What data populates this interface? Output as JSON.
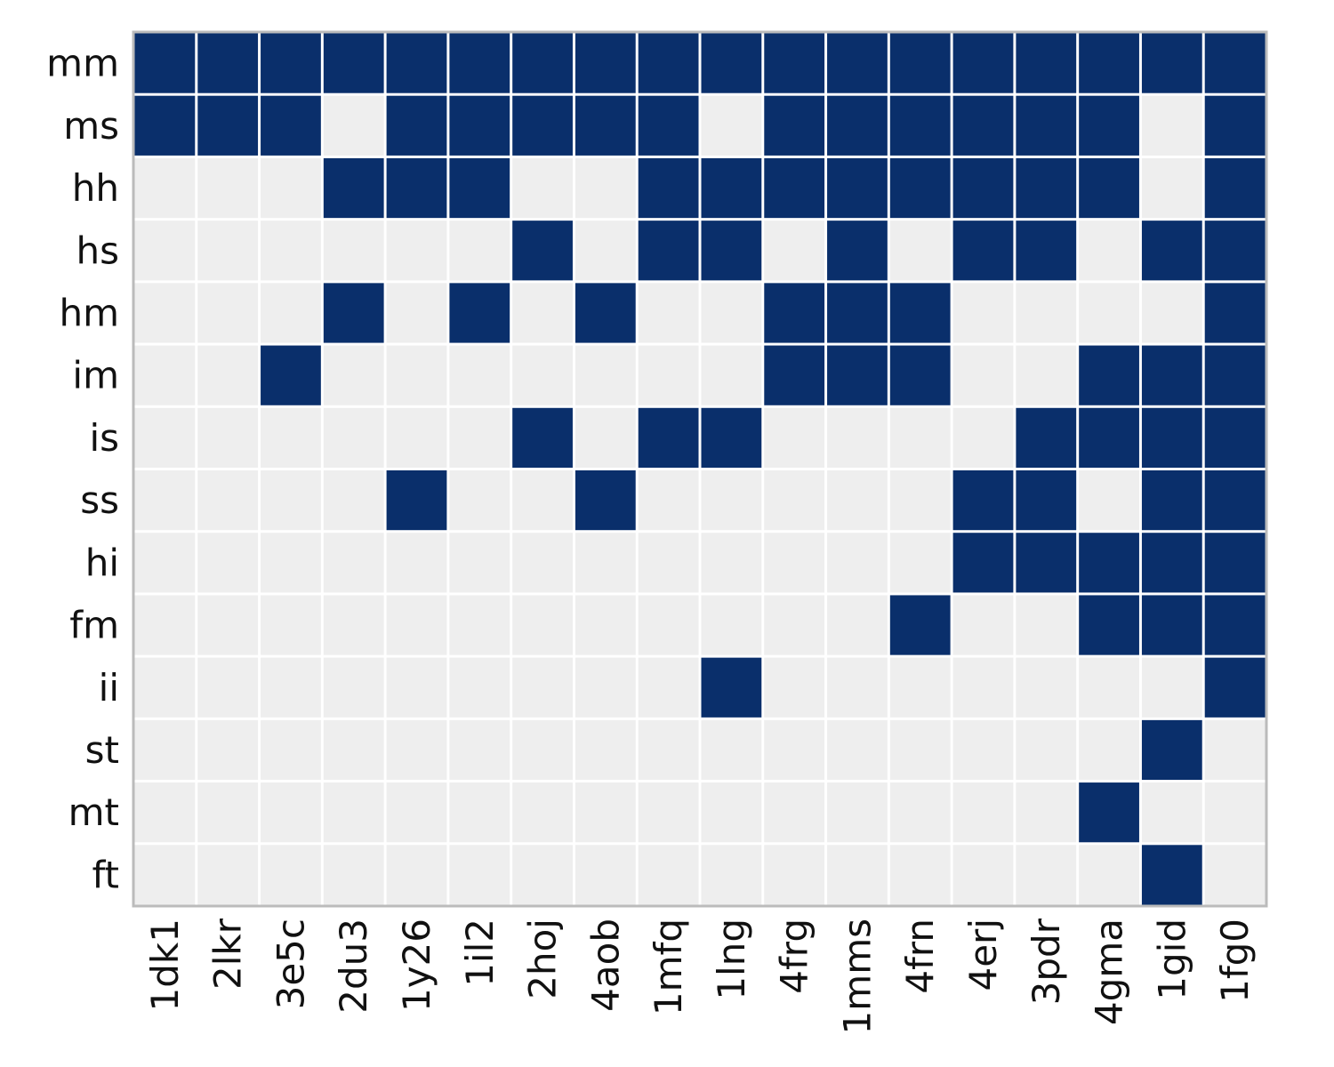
{
  "chart_data": {
    "type": "heatmap",
    "title": "",
    "xlabel": "",
    "ylabel": "",
    "grid": false,
    "colors": {
      "present": "#0a2f6b",
      "absent": "#eeeeee",
      "gap": "#ffffff",
      "frame": "#bbbbbb"
    },
    "columns": [
      "1dk1",
      "2lkr",
      "3e5c",
      "2du3",
      "1y26",
      "1il2",
      "2hoj",
      "4aob",
      "1mfq",
      "1lng",
      "4frg",
      "1mms",
      "4frn",
      "4erj",
      "3pdr",
      "4gma",
      "1gid",
      "1fg0"
    ],
    "rows": [
      "mm",
      "ms",
      "hh",
      "hs",
      "hm",
      "im",
      "is",
      "ss",
      "hi",
      "fm",
      "ii",
      "st",
      "mt",
      "ft"
    ],
    "values": [
      [
        1,
        1,
        1,
        1,
        1,
        1,
        1,
        1,
        1,
        1,
        1,
        1,
        1,
        1,
        1,
        1,
        1,
        1
      ],
      [
        1,
        1,
        1,
        0,
        1,
        1,
        1,
        1,
        1,
        0,
        1,
        1,
        1,
        1,
        1,
        1,
        0,
        1
      ],
      [
        0,
        0,
        0,
        1,
        1,
        1,
        0,
        0,
        1,
        1,
        1,
        1,
        1,
        1,
        1,
        1,
        0,
        1
      ],
      [
        0,
        0,
        0,
        0,
        0,
        0,
        1,
        0,
        1,
        1,
        0,
        1,
        0,
        1,
        1,
        0,
        1,
        1
      ],
      [
        0,
        0,
        0,
        1,
        0,
        1,
        0,
        1,
        0,
        0,
        1,
        1,
        1,
        0,
        0,
        0,
        0,
        1
      ],
      [
        0,
        0,
        1,
        0,
        0,
        0,
        0,
        0,
        0,
        0,
        1,
        1,
        1,
        0,
        0,
        1,
        1,
        1
      ],
      [
        0,
        0,
        0,
        0,
        0,
        0,
        1,
        0,
        1,
        1,
        0,
        0,
        0,
        0,
        1,
        1,
        1,
        1
      ],
      [
        0,
        0,
        0,
        0,
        1,
        0,
        0,
        1,
        0,
        0,
        0,
        0,
        0,
        1,
        1,
        0,
        1,
        1
      ],
      [
        0,
        0,
        0,
        0,
        0,
        0,
        0,
        0,
        0,
        0,
        0,
        0,
        0,
        1,
        1,
        1,
        1,
        1
      ],
      [
        0,
        0,
        0,
        0,
        0,
        0,
        0,
        0,
        0,
        0,
        0,
        0,
        1,
        0,
        0,
        1,
        1,
        1
      ],
      [
        0,
        0,
        0,
        0,
        0,
        0,
        0,
        0,
        0,
        1,
        0,
        0,
        0,
        0,
        0,
        0,
        0,
        1
      ],
      [
        0,
        0,
        0,
        0,
        0,
        0,
        0,
        0,
        0,
        0,
        0,
        0,
        0,
        0,
        0,
        0,
        1,
        0
      ],
      [
        0,
        0,
        0,
        0,
        0,
        0,
        0,
        0,
        0,
        0,
        0,
        0,
        0,
        0,
        0,
        1,
        0,
        0
      ],
      [
        0,
        0,
        0,
        0,
        0,
        0,
        0,
        0,
        0,
        0,
        0,
        0,
        0,
        0,
        0,
        0,
        1,
        0
      ]
    ]
  }
}
